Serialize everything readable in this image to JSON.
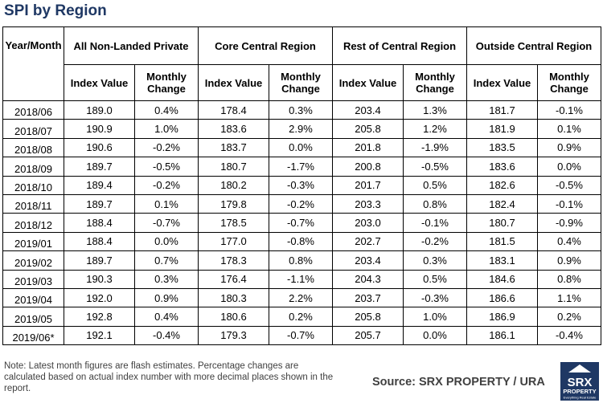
{
  "title": "SPI by Region",
  "table": {
    "year_month_header": "Year/Month",
    "groups": [
      "All Non-Landed Private",
      "Core Central Region",
      "Rest of Central Region",
      "Outside Central Region"
    ],
    "sub_headers": {
      "index": "Index Value",
      "change_line1": "Monthly",
      "change_line2": "Change"
    },
    "rows": [
      {
        "month": "2018/06",
        "vals": [
          "189.0",
          "0.4%",
          "178.4",
          "0.3%",
          "203.4",
          "1.3%",
          "181.7",
          "-0.1%"
        ]
      },
      {
        "month": "2018/07",
        "vals": [
          "190.9",
          "1.0%",
          "183.6",
          "2.9%",
          "205.8",
          "1.2%",
          "181.9",
          "0.1%"
        ]
      },
      {
        "month": "2018/08",
        "vals": [
          "190.6",
          "-0.2%",
          "183.7",
          "0.0%",
          "201.8",
          "-1.9%",
          "183.5",
          "0.9%"
        ]
      },
      {
        "month": "2018/09",
        "vals": [
          "189.7",
          "-0.5%",
          "180.7",
          "-1.7%",
          "200.8",
          "-0.5%",
          "183.6",
          "0.0%"
        ]
      },
      {
        "month": "2018/10",
        "vals": [
          "189.4",
          "-0.2%",
          "180.2",
          "-0.3%",
          "201.7",
          "0.5%",
          "182.6",
          "-0.5%"
        ]
      },
      {
        "month": "2018/11",
        "vals": [
          "189.7",
          "0.1%",
          "179.8",
          "-0.2%",
          "203.3",
          "0.8%",
          "182.4",
          "-0.1%"
        ]
      },
      {
        "month": "2018/12",
        "vals": [
          "188.4",
          "-0.7%",
          "178.5",
          "-0.7%",
          "203.0",
          "-0.1%",
          "180.7",
          "-0.9%"
        ]
      },
      {
        "month": "2019/01",
        "vals": [
          "188.4",
          "0.0%",
          "177.0",
          "-0.8%",
          "202.7",
          "-0.2%",
          "181.5",
          "0.4%"
        ]
      },
      {
        "month": "2019/02",
        "vals": [
          "189.7",
          "0.7%",
          "178.3",
          "0.8%",
          "203.4",
          "0.3%",
          "183.1",
          "0.9%"
        ]
      },
      {
        "month": "2019/03",
        "vals": [
          "190.3",
          "0.3%",
          "176.4",
          "-1.1%",
          "204.3",
          "0.5%",
          "184.6",
          "0.8%"
        ]
      },
      {
        "month": "2019/04",
        "vals": [
          "192.0",
          "0.9%",
          "180.3",
          "2.2%",
          "203.7",
          "-0.3%",
          "186.6",
          "1.1%"
        ]
      },
      {
        "month": "2019/05",
        "vals": [
          "192.8",
          "0.4%",
          "180.6",
          "0.2%",
          "205.8",
          "1.0%",
          "186.9",
          "0.2%"
        ]
      },
      {
        "month": "2019/06*",
        "vals": [
          "192.1",
          "-0.4%",
          "179.3",
          "-0.7%",
          "205.7",
          "0.0%",
          "186.1",
          "-0.4%"
        ]
      }
    ]
  },
  "note": "Note: Latest month figures are flash estimates. Percentage changes are calculated based on actual index number with more decimal places shown in the report.",
  "source": "Source:  SRX PROPERTY / URA",
  "logo": {
    "line1": "SRX",
    "line2": "PROPERTY",
    "tagline": "Everything Real Estate",
    "bg_color": "#1f3864"
  }
}
